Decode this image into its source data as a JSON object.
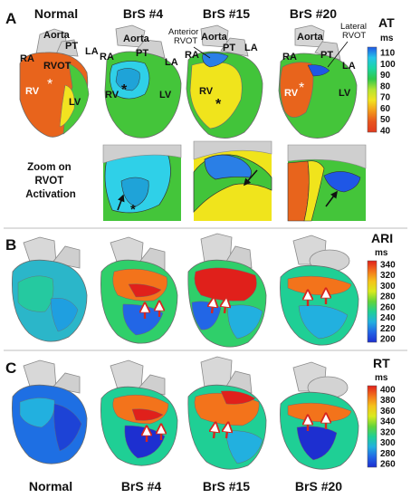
{
  "panels": {
    "a": {
      "letter": "A",
      "columns": [
        "Normal",
        "BrS #4",
        "BrS #15",
        "BrS #20"
      ],
      "anatomy": {
        "aorta": "Aorta",
        "pt": "PT",
        "ra": "RA",
        "la": "LA",
        "rvot": "RVOT",
        "rv": "RV",
        "lv": "LV",
        "star": "*"
      },
      "annotations": {
        "anterior": [
          "Anterior",
          "RVOT"
        ],
        "lateral": [
          "Lateral",
          "RVOT"
        ]
      },
      "zoom_label": [
        "Zoom on",
        "RVOT",
        "Activation"
      ],
      "colorbar": {
        "title": "AT",
        "unit": "ms",
        "ticks": [
          "110",
          "100",
          "90",
          "80",
          "70",
          "60",
          "50",
          "40"
        ],
        "colors": [
          "#1f57e6",
          "#24c4e8",
          "#1bd6a2",
          "#2ec84a",
          "#b6e431",
          "#f2e320",
          "#f39a1c",
          "#e8551e",
          "#e23a1f"
        ]
      }
    },
    "b": {
      "letter": "B",
      "colorbar": {
        "title": "ARI",
        "unit": "ms",
        "ticks": [
          "340",
          "320",
          "300",
          "280",
          "260",
          "240",
          "220",
          "200"
        ],
        "colors": [
          "#e0201b",
          "#f3731b",
          "#f5c21b",
          "#d9ea1e",
          "#62d43a",
          "#1fcf95",
          "#22b0df",
          "#2266e6",
          "#1d2fd0"
        ]
      }
    },
    "c": {
      "letter": "C",
      "colorbar": {
        "title": "RT",
        "unit": "ms",
        "ticks": [
          "400",
          "380",
          "360",
          "340",
          "320",
          "300",
          "280",
          "260"
        ],
        "colors": [
          "#e0201b",
          "#f3731b",
          "#f5c21b",
          "#d9ea1e",
          "#62d43a",
          "#1fcf95",
          "#22b0df",
          "#2266e6",
          "#1d2fd0"
        ]
      }
    }
  }
}
